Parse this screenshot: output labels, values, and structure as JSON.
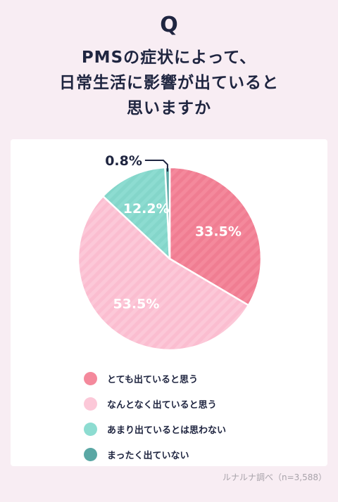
{
  "question_mark": "Q",
  "title_lines": [
    "PMSの症状によって、",
    "日常生活に影響が出ていると",
    "思いますか"
  ],
  "source": "ルナルナ調べ（n=3,588）",
  "colors": {
    "background": "#f8edf3",
    "text": "#1f2540",
    "label_text": "#ffffff"
  },
  "chart_data": {
    "type": "pie",
    "title": "PMSの症状によって、日常生活に影響が出ていると思いますか",
    "start_angle_deg": 0,
    "direction": "clockwise",
    "legend_position": "bottom",
    "slices": [
      {
        "name": "とても出ていると思う",
        "value": 33.5,
        "label": "33.5%",
        "color": "#f4899c",
        "stripe": "#f07d92"
      },
      {
        "name": "なんとなく出ていると思う",
        "value": 53.5,
        "label": "53.5%",
        "color": "#fcc8d8",
        "stripe": "#fbbdd0"
      },
      {
        "name": "あまり出ているとは思わない",
        "value": 12.2,
        "label": "12.2%",
        "color": "#8ddcd1",
        "stripe": "#84d6ca"
      },
      {
        "name": "まったく出ていない",
        "value": 0.8,
        "label": "0.8%",
        "color": "#5aa7a4",
        "stripe": "#5aa7a4"
      }
    ]
  }
}
